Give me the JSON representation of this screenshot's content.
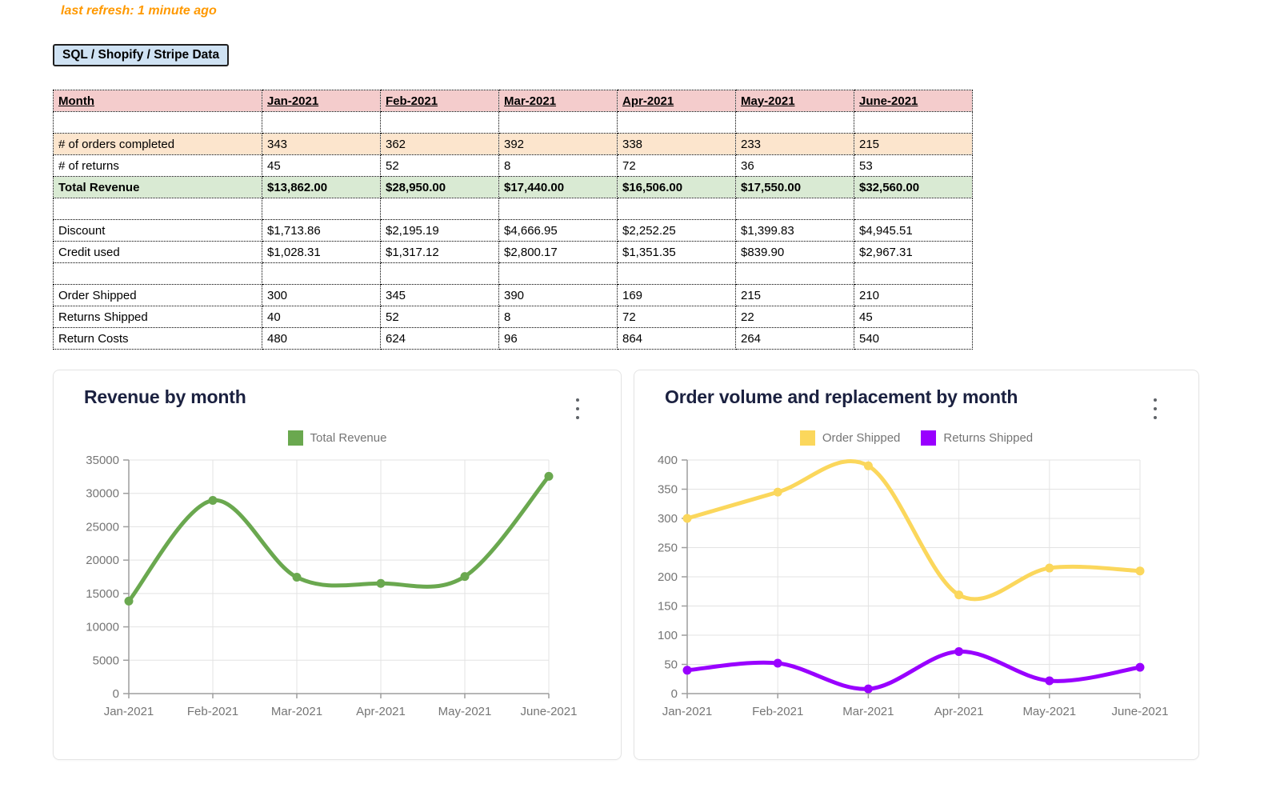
{
  "page": {
    "last_refresh": "last refresh: 1 minute ago",
    "source_button": "SQL / Shopify / Stripe Data"
  },
  "table": {
    "columns": [
      "Month",
      "Jan-2021",
      "Feb-2021",
      "Mar-2021",
      "Apr-2021",
      "May-2021",
      "June-2021"
    ],
    "rows": [
      {
        "type": "spacer"
      },
      {
        "type": "data",
        "variant": "orange",
        "label": "# of orders completed",
        "values": [
          "343",
          "362",
          "392",
          "338",
          "233",
          "215"
        ]
      },
      {
        "type": "data",
        "variant": "plain",
        "label": "# of returns",
        "values": [
          "45",
          "52",
          "8",
          "72",
          "36",
          "53"
        ]
      },
      {
        "type": "data",
        "variant": "green",
        "label": "Total Revenue",
        "values": [
          "$13,862.00",
          "$28,950.00",
          "$17,440.00",
          "$16,506.00",
          "$17,550.00",
          "$32,560.00"
        ]
      },
      {
        "type": "spacer"
      },
      {
        "type": "data",
        "variant": "plain",
        "label": "Discount",
        "values": [
          "$1,713.86",
          "$2,195.19",
          "$4,666.95",
          "$2,252.25",
          "$1,399.83",
          "$4,945.51"
        ]
      },
      {
        "type": "data",
        "variant": "plain",
        "label": "Credit used",
        "values": [
          "$1,028.31",
          "$1,317.12",
          "$2,800.17",
          "$1,351.35",
          "$839.90",
          "$2,967.31"
        ]
      },
      {
        "type": "spacer"
      },
      {
        "type": "data",
        "variant": "plain",
        "label": "Order Shipped",
        "values": [
          "300",
          "345",
          "390",
          "169",
          "215",
          "210"
        ]
      },
      {
        "type": "data",
        "variant": "plain",
        "label": "Returns Shipped",
        "values": [
          "40",
          "52",
          "8",
          "72",
          "22",
          "45"
        ]
      },
      {
        "type": "data",
        "variant": "plain",
        "label": "Return Costs",
        "values": [
          "480",
          "624",
          "96",
          "864",
          "264",
          "540"
        ]
      }
    ],
    "colors": {
      "header_bg": "#f4cccc",
      "orange_bg": "#fce5cd",
      "green_bg": "#d9ead3",
      "border": "#000000"
    }
  },
  "chart_data": [
    {
      "type": "line",
      "title": "Revenue by month",
      "categories": [
        "Jan-2021",
        "Feb-2021",
        "Mar-2021",
        "Apr-2021",
        "May-2021",
        "June-2021"
      ],
      "series": [
        {
          "name": "Total Revenue",
          "values": [
            13862,
            28950,
            17440,
            16506,
            17550,
            32560
          ],
          "color": "#6aa84f"
        }
      ],
      "xlabel": "",
      "ylabel": "",
      "ylim": [
        0,
        35000
      ],
      "ytick_step": 5000,
      "grid": true,
      "legend_position": "top",
      "curve": "smooth",
      "marker": "circle"
    },
    {
      "type": "line",
      "title": "Order volume and replacement by month",
      "categories": [
        "Jan-2021",
        "Feb-2021",
        "Mar-2021",
        "Apr-2021",
        "May-2021",
        "June-2021"
      ],
      "series": [
        {
          "name": "Order Shipped",
          "values": [
            300,
            345,
            390,
            169,
            215,
            210
          ],
          "color": "#fbd75c"
        },
        {
          "name": "Returns Shipped",
          "values": [
            40,
            52,
            8,
            72,
            22,
            45
          ],
          "color": "#9900ff"
        }
      ],
      "xlabel": "",
      "ylabel": "",
      "ylim": [
        0,
        400
      ],
      "ytick_step": 50,
      "grid": true,
      "legend_position": "top",
      "curve": "smooth",
      "marker": "circle"
    }
  ],
  "chart_ui": {
    "title_color": "#1b2140",
    "tick_label_color": "#757575",
    "axis_color": "#9e9e9e",
    "grid_color": "#e3e3e3",
    "legend_text_color": "#757575"
  }
}
